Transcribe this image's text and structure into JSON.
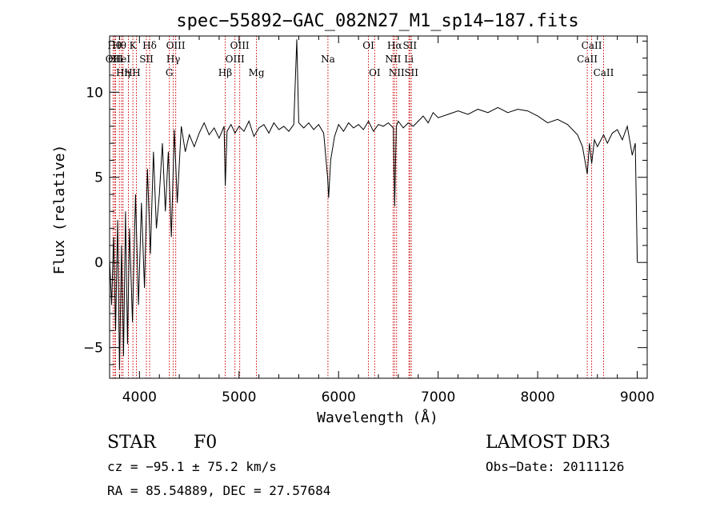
{
  "chart_data": {
    "type": "line",
    "title": "spec−55892−GAC_082N27_M1_sp14−187.fits",
    "xlabel": "Wavelength (Å)",
    "ylabel": "Flux (relative)",
    "xlim": [
      3700,
      9100
    ],
    "ylim": [
      -6.8,
      13.3
    ],
    "xticks": [
      4000,
      5000,
      6000,
      7000,
      8000,
      9000
    ],
    "yticks": [
      -5,
      0,
      5,
      10
    ],
    "ytick_labels": [
      "−5",
      "0",
      "5",
      "10"
    ],
    "grid": false,
    "series": [
      {
        "x": [
          3700,
          3720,
          3740,
          3760,
          3780,
          3800,
          3820,
          3840,
          3860,
          3880,
          3900,
          3930,
          3960,
          3990,
          4020,
          4050,
          4080,
          4110,
          4140,
          4170,
          4200,
          4230,
          4260,
          4290,
          4320,
          4350,
          4380,
          4420,
          4460,
          4500,
          4550,
          4600,
          4650,
          4700,
          4750,
          4800,
          4850,
          4862,
          4880,
          4920,
          4960,
          5000,
          5050,
          5100,
          5150,
          5200,
          5250,
          5300,
          5350,
          5400,
          5450,
          5500,
          5550,
          5580,
          5600,
          5650,
          5700,
          5750,
          5800,
          5850,
          5890,
          5900,
          5920,
          5960,
          6000,
          6050,
          6100,
          6150,
          6200,
          6250,
          6300,
          6350,
          6400,
          6450,
          6500,
          6550,
          6563,
          6580,
          6600,
          6650,
          6700,
          6750,
          6800,
          6850,
          6900,
          6950,
          7000,
          7100,
          7200,
          7300,
          7400,
          7500,
          7600,
          7700,
          7800,
          7900,
          8000,
          8100,
          8200,
          8300,
          8400,
          8450,
          8498,
          8520,
          8542,
          8570,
          8600,
          8662,
          8700,
          8750,
          8800,
          8850,
          8900,
          8950,
          8980,
          9000
        ],
        "y": [
          0.2,
          -2.5,
          1.5,
          -4.0,
          2.5,
          -6.3,
          1.0,
          -5.5,
          3.0,
          -4.8,
          2.0,
          -3.5,
          4.0,
          -2.5,
          3.5,
          -1.5,
          5.5,
          0.5,
          6.5,
          2.0,
          4.0,
          7.0,
          3.0,
          6.5,
          1.5,
          7.8,
          3.5,
          8.0,
          6.5,
          7.5,
          6.8,
          7.6,
          8.2,
          7.5,
          7.9,
          7.3,
          8.0,
          4.5,
          7.7,
          8.1,
          7.6,
          8.0,
          7.7,
          8.3,
          7.4,
          7.9,
          8.1,
          7.6,
          8.2,
          7.8,
          8.0,
          7.7,
          8.1,
          13.1,
          8.2,
          7.9,
          8.2,
          7.8,
          8.1,
          7.6,
          5.0,
          3.8,
          6.0,
          7.4,
          8.1,
          7.7,
          8.2,
          7.9,
          8.1,
          7.8,
          8.3,
          7.7,
          8.1,
          8.0,
          8.2,
          7.9,
          3.3,
          8.0,
          8.3,
          7.9,
          8.2,
          8.0,
          8.3,
          8.6,
          8.2,
          8.8,
          8.5,
          8.7,
          8.9,
          8.7,
          9.0,
          8.8,
          9.1,
          8.8,
          9.0,
          8.9,
          8.6,
          8.2,
          8.4,
          8.1,
          7.5,
          6.8,
          5.2,
          7.0,
          5.8,
          7.2,
          6.8,
          7.5,
          7.0,
          7.6,
          7.8,
          7.2,
          8.0,
          6.3,
          7.0,
          0.0
        ]
      }
    ],
    "line_markers": [
      {
        "wavelength": 3735,
        "label": "OII",
        "row": 2
      },
      {
        "wavelength": 3750,
        "label": "Hθ",
        "row": 1
      },
      {
        "wavelength": 3760,
        "label": "CII",
        "row": 2
      },
      {
        "wavelength": 3798,
        "label": "Hθ",
        "row": 1
      },
      {
        "wavelength": 3820,
        "label": "HeI",
        "row": 2
      },
      {
        "wavelength": 3835,
        "label": "Hη",
        "row": 3
      },
      {
        "wavelength": 3889,
        "label": "H",
        "row": 3
      },
      {
        "wavelength": 3934,
        "label": "K",
        "row": 1
      },
      {
        "wavelength": 3969,
        "label": "H",
        "row": 3
      },
      {
        "wavelength": 4070,
        "label": "SII",
        "row": 2
      },
      {
        "wavelength": 4102,
        "label": "Hδ",
        "row": 1
      },
      {
        "wavelength": 4300,
        "label": "G",
        "row": 3
      },
      {
        "wavelength": 4340,
        "label": "Hγ",
        "row": 2
      },
      {
        "wavelength": 4364,
        "label": "OIII",
        "row": 1
      },
      {
        "wavelength": 4861,
        "label": "Hβ",
        "row": 3
      },
      {
        "wavelength": 4959,
        "label": "OIII",
        "row": 2
      },
      {
        "wavelength": 5007,
        "label": "OIII",
        "row": 1
      },
      {
        "wavelength": 5175,
        "label": "Mg",
        "row": 3
      },
      {
        "wavelength": 5893,
        "label": "Na",
        "row": 2
      },
      {
        "wavelength": 6300,
        "label": "OI",
        "row": 1
      },
      {
        "wavelength": 6363,
        "label": "OI",
        "row": 3
      },
      {
        "wavelength": 6548,
        "label": "NII",
        "row": 2
      },
      {
        "wavelength": 6563,
        "label": "Hα",
        "row": 1
      },
      {
        "wavelength": 6583,
        "label": "NII",
        "row": 3
      },
      {
        "wavelength": 6707,
        "label": "Li",
        "row": 2
      },
      {
        "wavelength": 6716,
        "label": "SII",
        "row": 1
      },
      {
        "wavelength": 6731,
        "label": "SII",
        "row": 3
      },
      {
        "wavelength": 8498,
        "label": "CaII",
        "row": 2
      },
      {
        "wavelength": 8542,
        "label": "CaII",
        "row": 1
      },
      {
        "wavelength": 8662,
        "label": "CaII",
        "row": 3
      }
    ]
  },
  "info": {
    "class_label": "STAR",
    "subclass_label": "F0",
    "survey_label": "LAMOST DR3",
    "redshift_text": "cz = −95.1 ± 75.2 km/s",
    "obsdate_text": "Obs−Date: 20111126",
    "radec_text": "RA =  85.54889, DEC =  27.57684"
  },
  "colors": {
    "spectrum": "#000000",
    "line_marker": "#cc0000",
    "axes": "#000000"
  }
}
